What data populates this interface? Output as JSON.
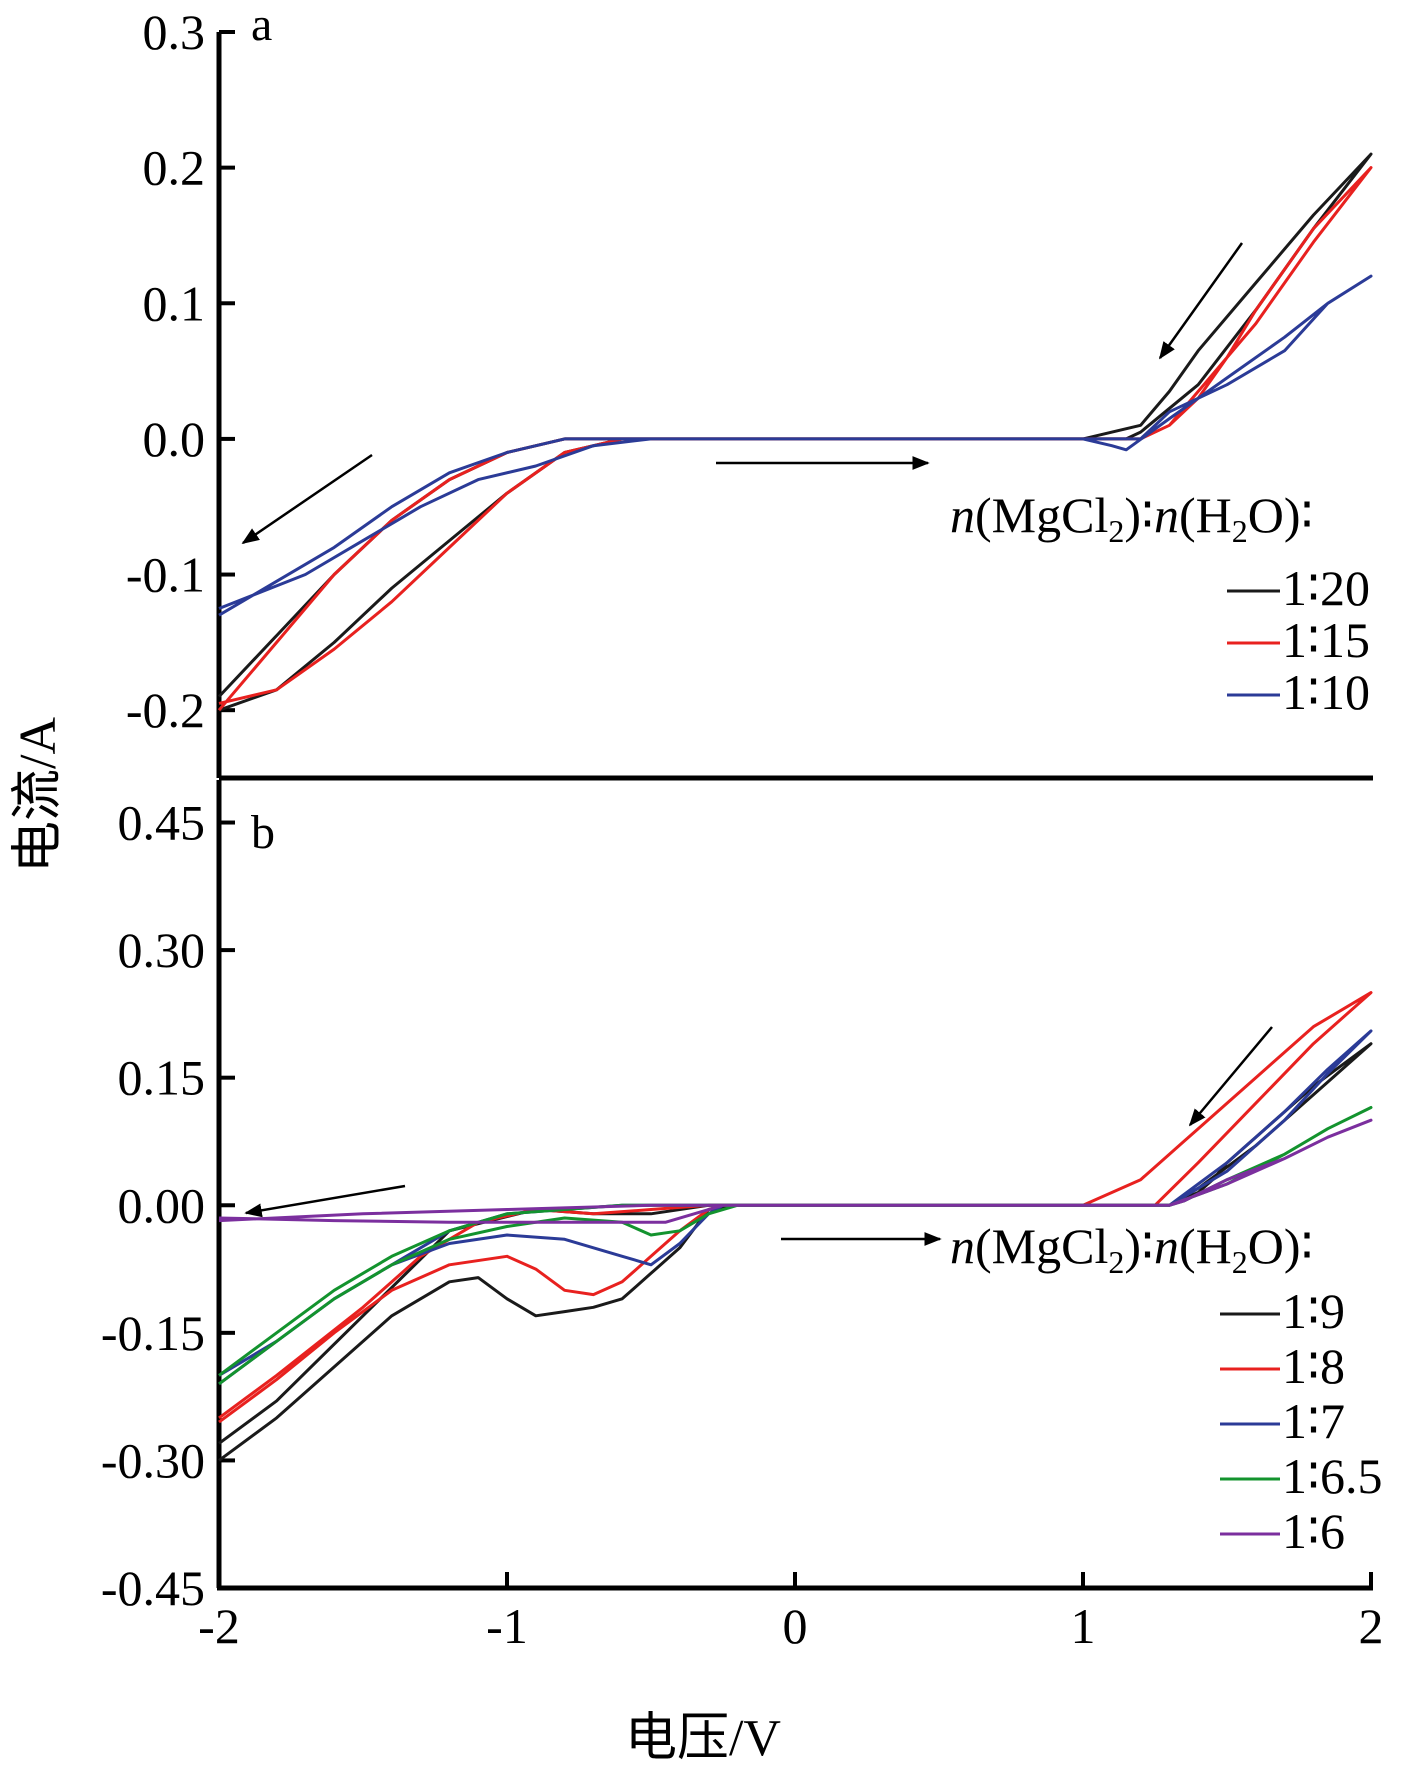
{
  "chart_data": [
    {
      "panel": "a",
      "type": "line",
      "xlim": [
        -2,
        2
      ],
      "ylim": [
        -0.25,
        0.3
      ],
      "y_ticks": [
        "0.3",
        "0.2",
        "0.1",
        "0.0",
        "-0.1",
        "-0.2"
      ],
      "y_tick_values": [
        0.3,
        0.2,
        0.1,
        0.0,
        -0.1,
        -0.2
      ],
      "legend": {
        "title_n1": "n",
        "title_part1": "(MgCl",
        "title_sub1": "2",
        "title_part2": ")∶",
        "title_n2": "n",
        "title_part3": "(H",
        "title_sub2": "2",
        "title_part4": "O)∶",
        "placement": "right",
        "entries": [
          "1∶20",
          "1∶15",
          "1∶10"
        ]
      },
      "colors": [
        "#1a1a1a",
        "#e8211f",
        "#2b3b97"
      ],
      "series": [
        {
          "name": "1∶20",
          "x": [
            -2.0,
            -1.8,
            -1.6,
            -1.4,
            -1.2,
            -1.0,
            -0.8,
            -0.6,
            -0.4,
            0.0,
            0.4,
            0.8,
            1.0,
            1.15,
            1.2,
            1.4,
            1.6,
            1.8,
            2.0,
            1.8,
            1.6,
            1.4,
            1.3,
            1.2,
            1.0,
            0.5,
            0.0,
            -0.6,
            -0.8,
            -1.0,
            -1.2,
            -1.4,
            -1.6,
            -1.8,
            -2.0
          ],
          "y": [
            -0.19,
            -0.145,
            -0.1,
            -0.06,
            -0.03,
            -0.01,
            0.0,
            0.0,
            0.0,
            0.0,
            0.0,
            0.0,
            0.0,
            0.0,
            0.005,
            0.04,
            0.095,
            0.155,
            0.21,
            0.165,
            0.115,
            0.065,
            0.035,
            0.01,
            0.0,
            0.0,
            0.0,
            0.0,
            -0.01,
            -0.04,
            -0.075,
            -0.11,
            -0.15,
            -0.185,
            -0.2
          ]
        },
        {
          "name": "1∶15",
          "x": [
            -2.0,
            -1.8,
            -1.6,
            -1.4,
            -1.2,
            -1.0,
            -0.8,
            -0.6,
            -0.4,
            0.0,
            0.4,
            0.8,
            1.0,
            1.2,
            1.3,
            1.4,
            1.6,
            1.8,
            2.0,
            1.8,
            1.6,
            1.5,
            1.4,
            1.3,
            1.2,
            1.0,
            0.5,
            0.0,
            -0.6,
            -0.8,
            -1.0,
            -1.2,
            -1.4,
            -1.6,
            -1.8,
            -2.0
          ],
          "y": [
            -0.2,
            -0.15,
            -0.1,
            -0.06,
            -0.03,
            -0.01,
            0.0,
            0.0,
            0.0,
            0.0,
            0.0,
            0.0,
            0.0,
            0.0,
            0.01,
            0.035,
            0.085,
            0.145,
            0.2,
            0.155,
            0.095,
            0.06,
            0.03,
            0.01,
            0.0,
            0.0,
            0.0,
            0.0,
            0.0,
            -0.01,
            -0.04,
            -0.08,
            -0.12,
            -0.155,
            -0.185,
            -0.195
          ]
        },
        {
          "name": "1∶10",
          "x": [
            -2.0,
            -1.8,
            -1.6,
            -1.4,
            -1.2,
            -1.0,
            -0.8,
            -0.6,
            0.0,
            0.6,
            1.0,
            1.1,
            1.15,
            1.3,
            1.5,
            1.7,
            1.85,
            2.0,
            1.85,
            1.7,
            1.5,
            1.3,
            1.2,
            1.0,
            0.5,
            0.0,
            -0.5,
            -0.7,
            -0.9,
            -1.1,
            -1.3,
            -1.5,
            -1.7,
            -2.0
          ],
          "y": [
            -0.13,
            -0.105,
            -0.08,
            -0.05,
            -0.025,
            -0.01,
            0.0,
            0.0,
            0.0,
            0.0,
            0.0,
            -0.005,
            -0.008,
            0.015,
            0.045,
            0.075,
            0.1,
            0.12,
            0.1,
            0.065,
            0.04,
            0.02,
            0.0,
            0.0,
            0.0,
            0.0,
            0.0,
            -0.005,
            -0.02,
            -0.03,
            -0.05,
            -0.075,
            -0.1,
            -0.125
          ]
        }
      ]
    },
    {
      "panel": "b",
      "type": "line",
      "xlim": [
        -2,
        2
      ],
      "ylim": [
        -0.45,
        0.5
      ],
      "x_ticks": [
        "-2",
        "-1",
        "0",
        "1",
        "2"
      ],
      "x_tick_values": [
        -2,
        -1,
        0,
        1,
        2
      ],
      "y_ticks": [
        "0.45",
        "0.30",
        "0.15",
        "0.00",
        "-0.15",
        "-0.30",
        "-0.45"
      ],
      "y_tick_values": [
        0.45,
        0.3,
        0.15,
        0.0,
        -0.15,
        -0.3,
        -0.45
      ],
      "legend": {
        "title_n1": "n",
        "title_part1": "(MgCl",
        "title_sub1": "2",
        "title_part2": ")∶",
        "title_n2": "n",
        "title_part3": "(H",
        "title_sub2": "2",
        "title_part4": "O)∶",
        "placement": "right",
        "entries": [
          "1∶9",
          "1∶8",
          "1∶7",
          "1∶6.5",
          "1∶6"
        ]
      },
      "colors": [
        "#1a1a1a",
        "#e8211f",
        "#2b3b97",
        "#13932e",
        "#7b2f9e"
      ],
      "series": [
        {
          "name": "1∶9",
          "x": [
            -2.0,
            -1.8,
            -1.6,
            -1.4,
            -1.2,
            -1.1,
            -1.0,
            -0.9,
            -0.8,
            -0.7,
            -0.6,
            -0.5,
            -0.4,
            -0.3,
            -0.2,
            0.0,
            0.5,
            1.0,
            1.3,
            1.4,
            1.6,
            1.8,
            2.0,
            1.8,
            1.6,
            1.5,
            1.45,
            1.4,
            1.3,
            1.0,
            0.0,
            -0.3,
            -0.5,
            -0.7,
            -0.9,
            -1.2,
            -1.5,
            -1.8,
            -2.0
          ],
          "y": [
            -0.3,
            -0.25,
            -0.19,
            -0.13,
            -0.09,
            -0.085,
            -0.11,
            -0.13,
            -0.125,
            -0.12,
            -0.11,
            -0.08,
            -0.05,
            -0.005,
            0.0,
            0.0,
            0.0,
            0.0,
            0.0,
            0.02,
            0.07,
            0.13,
            0.19,
            0.14,
            0.08,
            0.05,
            0.03,
            0.015,
            0.0,
            0.0,
            0.0,
            0.0,
            -0.01,
            -0.01,
            -0.005,
            -0.03,
            -0.13,
            -0.23,
            -0.28
          ]
        },
        {
          "name": "1∶8",
          "x": [
            -2.0,
            -1.8,
            -1.6,
            -1.4,
            -1.2,
            -1.0,
            -0.9,
            -0.8,
            -0.7,
            -0.6,
            -0.5,
            -0.4,
            -0.3,
            -0.25,
            0.0,
            0.5,
            1.0,
            1.25,
            1.4,
            1.6,
            1.8,
            2.0,
            1.8,
            1.6,
            1.5,
            1.4,
            1.3,
            1.2,
            1.0,
            0.0,
            -0.3,
            -0.5,
            -0.7,
            -0.9,
            -1.1,
            -1.3,
            -1.5,
            -1.8,
            -2.0
          ],
          "y": [
            -0.255,
            -0.205,
            -0.15,
            -0.1,
            -0.07,
            -0.06,
            -0.075,
            -0.1,
            -0.105,
            -0.09,
            -0.06,
            -0.03,
            -0.005,
            0.0,
            0.0,
            0.0,
            0.0,
            0.0,
            0.05,
            0.12,
            0.19,
            0.25,
            0.21,
            0.15,
            0.12,
            0.09,
            0.06,
            0.03,
            0.0,
            0.0,
            0.0,
            -0.005,
            -0.01,
            -0.005,
            -0.02,
            -0.06,
            -0.12,
            -0.2,
            -0.25
          ]
        },
        {
          "name": "1∶7",
          "x": [
            -2.0,
            -1.8,
            -1.6,
            -1.4,
            -1.2,
            -1.0,
            -0.8,
            -0.6,
            -0.5,
            -0.4,
            -0.3,
            -0.25,
            0.0,
            0.5,
            1.0,
            1.3,
            1.5,
            1.7,
            1.85,
            2.0,
            1.85,
            1.7,
            1.6,
            1.5,
            1.4,
            1.3,
            1.0,
            0.0,
            -0.6,
            -0.8,
            -1.0,
            -1.2,
            -1.4,
            -1.6,
            -1.8,
            -2.0
          ],
          "y": [
            -0.21,
            -0.16,
            -0.11,
            -0.07,
            -0.045,
            -0.035,
            -0.04,
            -0.06,
            -0.07,
            -0.045,
            -0.01,
            0.0,
            0.0,
            0.0,
            0.0,
            0.0,
            0.04,
            0.1,
            0.155,
            0.205,
            0.16,
            0.11,
            0.08,
            0.05,
            0.025,
            0.0,
            0.0,
            0.0,
            0.0,
            -0.005,
            -0.01,
            -0.03,
            -0.07,
            -0.11,
            -0.16,
            -0.2
          ]
        },
        {
          "name": "1∶6.5",
          "x": [
            -2.0,
            -1.8,
            -1.6,
            -1.4,
            -1.2,
            -1.0,
            -0.8,
            -0.6,
            -0.5,
            -0.4,
            -0.3,
            -0.2,
            0.0,
            0.5,
            1.0,
            1.3,
            1.5,
            1.7,
            1.85,
            2.0,
            1.85,
            1.7,
            1.5,
            1.35,
            1.3,
            1.0,
            0.0,
            -0.6,
            -0.8,
            -1.0,
            -1.2,
            -1.4,
            -1.6,
            -1.8,
            -2.0
          ],
          "y": [
            -0.21,
            -0.16,
            -0.11,
            -0.07,
            -0.04,
            -0.025,
            -0.015,
            -0.02,
            -0.035,
            -0.03,
            -0.01,
            0.0,
            0.0,
            0.0,
            0.0,
            0.0,
            0.025,
            0.06,
            0.09,
            0.115,
            0.09,
            0.06,
            0.03,
            0.005,
            0.0,
            0.0,
            0.0,
            0.0,
            -0.005,
            -0.01,
            -0.03,
            -0.06,
            -0.1,
            -0.15,
            -0.2
          ]
        },
        {
          "name": "1∶6",
          "x": [
            -2.0,
            -1.6,
            -1.2,
            -0.8,
            -0.6,
            -0.45,
            -0.35,
            -0.25,
            0.0,
            0.5,
            1.0,
            1.3,
            1.5,
            1.7,
            1.85,
            2.0,
            1.85,
            1.7,
            1.5,
            1.35,
            1.3,
            1.0,
            0.0,
            -0.5,
            -1.0,
            -1.5,
            -2.0
          ],
          "y": [
            -0.015,
            -0.018,
            -0.02,
            -0.02,
            -0.02,
            -0.02,
            -0.01,
            0.0,
            0.0,
            0.0,
            0.0,
            0.0,
            0.025,
            0.055,
            0.08,
            0.1,
            0.08,
            0.055,
            0.03,
            0.005,
            0.0,
            0.0,
            0.0,
            0.0,
            -0.005,
            -0.01,
            -0.018
          ]
        }
      ]
    }
  ],
  "axes": {
    "xlabel": "电压/V",
    "ylabel": "电流/A"
  }
}
